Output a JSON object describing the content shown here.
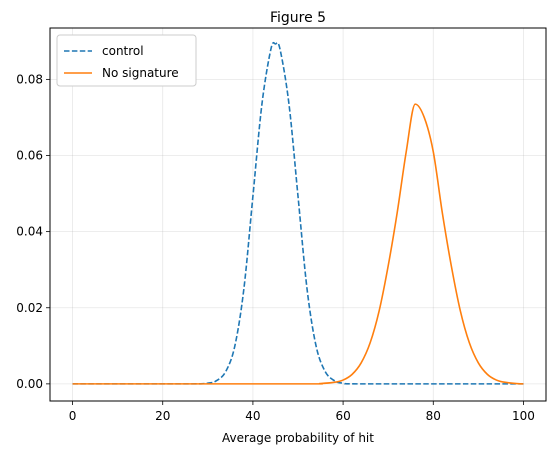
{
  "chart_data": {
    "type": "line",
    "title": "Figure 5",
    "xlabel": "Average probability of hit",
    "ylabel": "",
    "xlim": [
      -5,
      105
    ],
    "ylim": [
      -0.0045,
      0.0935
    ],
    "grid": true,
    "legend_position": "top-left",
    "x_ticks": [
      0,
      20,
      40,
      60,
      80,
      100
    ],
    "x_tick_labels": [
      "0",
      "20",
      "40",
      "60",
      "80",
      "100"
    ],
    "y_ticks": [
      0.0,
      0.02,
      0.04,
      0.06,
      0.08
    ],
    "y_tick_labels": [
      "0.00",
      "0.02",
      "0.04",
      "0.06",
      "0.08"
    ],
    "series": [
      {
        "name": "control",
        "style": "dashed",
        "color": "#1f77b4",
        "x": [
          0,
          25,
          30,
          32,
          34,
          36,
          38,
          40,
          42,
          44,
          45,
          46,
          48,
          50,
          52,
          54,
          56,
          58,
          60,
          65,
          100
        ],
        "y": [
          0.0,
          0.0,
          0.0002,
          0.0009,
          0.0033,
          0.01,
          0.025,
          0.0493,
          0.0735,
          0.088,
          0.0893,
          0.088,
          0.0735,
          0.0493,
          0.025,
          0.01,
          0.0033,
          0.0009,
          0.0002,
          0.0,
          0.0
        ]
      },
      {
        "name": "No signature",
        "style": "solid",
        "color": "#ff7f0e",
        "x": [
          0,
          50,
          55,
          58,
          60,
          62,
          64,
          66,
          68,
          70,
          72,
          74,
          76,
          78,
          80,
          82,
          84,
          86,
          88,
          90,
          92,
          94,
          96,
          100
        ],
        "y": [
          0.0,
          0.0,
          0.0001,
          0.0004,
          0.001,
          0.0025,
          0.0055,
          0.0108,
          0.0192,
          0.031,
          0.045,
          0.061,
          0.0735,
          0.07,
          0.061,
          0.045,
          0.031,
          0.0192,
          0.0108,
          0.0055,
          0.0025,
          0.001,
          0.0004,
          0.0
        ]
      }
    ]
  }
}
